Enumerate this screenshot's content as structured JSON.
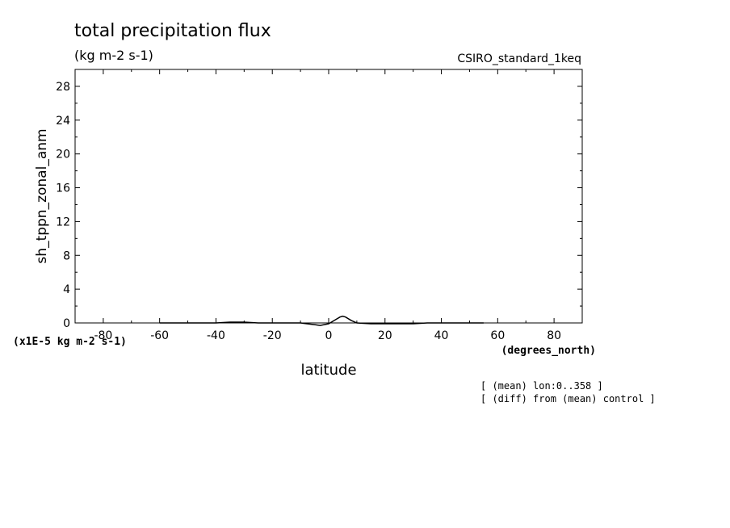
{
  "chart_data": {
    "type": "line",
    "title": "total precipitation flux",
    "units": "(kg m-2 s-1)",
    "dataset": "CSIRO_standard_1keq",
    "xlabel": "latitude",
    "xunits": "(degrees_north)",
    "ylabel": "sh_tppn_zonal_anm",
    "yscale_label": "(x1E-5 kg m-2 s-1)",
    "xlim": [
      -90,
      90
    ],
    "ylim": [
      0,
      30
    ],
    "xticks": [
      -80,
      -60,
      -40,
      -20,
      0,
      20,
      40,
      60,
      80
    ],
    "yticks": [
      0,
      4,
      8,
      12,
      16,
      20,
      24,
      28
    ],
    "grid": false,
    "notes": [
      "[ (mean) lon:0..358 ]",
      "[ (diff) from (mean) control ]"
    ],
    "series": [
      {
        "x": [
          -60,
          -50,
          -40,
          -35,
          -30,
          -25,
          -20,
          -15,
          -10,
          -5,
          -3,
          0,
          2,
          4,
          5,
          6,
          8,
          10,
          15,
          20,
          25,
          30,
          35,
          40,
          45,
          50,
          55
        ],
        "values": [
          0.0,
          0.0,
          0.0,
          0.1,
          0.1,
          0.0,
          0.0,
          0.0,
          0.0,
          -0.2,
          -0.3,
          -0.1,
          0.3,
          0.7,
          0.8,
          0.7,
          0.3,
          0.0,
          -0.1,
          -0.1,
          -0.1,
          -0.1,
          0.0,
          0.0,
          0.0,
          0.0,
          0.0
        ]
      }
    ]
  }
}
